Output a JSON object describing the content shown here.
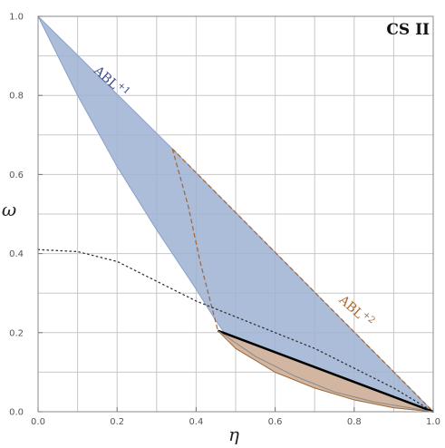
{
  "chart_data": {
    "type": "area",
    "tag": "CS II",
    "xlabel": "η",
    "ylabel": "ω",
    "xlim": [
      0,
      1
    ],
    "ylim": [
      0,
      1
    ],
    "xticks": [
      "0.0",
      "0.2",
      "0.4",
      "0.6",
      "0.8",
      "1.0"
    ],
    "yticks": [
      "0.0",
      "0.2",
      "0.4",
      "0.6",
      "0.8",
      "1.0"
    ],
    "grid": true,
    "colors": {
      "blue_fill": "#9db2d4",
      "blue_label": "#3b4a8f",
      "orange_fill": "#d8b596",
      "orange_line": "#a86a35",
      "dotted": "#333333",
      "black_line": "#000000",
      "grid": "#c8c8c8"
    },
    "regions": [
      {
        "name": "ABL+1",
        "color": "blue",
        "boundary": [
          [
            0.0,
            1.0
          ],
          [
            0.34,
            0.665
          ],
          [
            1.0,
            0.0
          ],
          [
            0.9,
            0.01
          ],
          [
            0.8,
            0.03
          ],
          [
            0.7,
            0.06
          ],
          [
            0.6,
            0.1
          ],
          [
            0.5,
            0.16
          ],
          [
            0.45,
            0.23
          ],
          [
            0.4,
            0.31
          ],
          [
            0.3,
            0.46
          ],
          [
            0.2,
            0.62
          ],
          [
            0.1,
            0.8
          ],
          [
            0.0,
            1.0
          ]
        ]
      },
      {
        "name": "ABL+2",
        "color": "orange",
        "boundary": [
          [
            0.455,
            0.205
          ],
          [
            1.0,
            0.0
          ],
          [
            0.9,
            0.01
          ],
          [
            0.8,
            0.03
          ],
          [
            0.7,
            0.06
          ],
          [
            0.6,
            0.1
          ],
          [
            0.5,
            0.16
          ],
          [
            0.455,
            0.205
          ]
        ]
      }
    ],
    "lines": [
      {
        "style": "dashed",
        "color": "orange",
        "points": [
          [
            0.34,
            0.665
          ],
          [
            0.38,
            0.52
          ],
          [
            0.41,
            0.38
          ],
          [
            0.455,
            0.205
          ]
        ]
      },
      {
        "style": "dashed",
        "color": "orange",
        "points": [
          [
            0.34,
            0.665
          ],
          [
            1.0,
            0.0
          ]
        ]
      },
      {
        "style": "dotted",
        "color": "dotted",
        "points": [
          [
            0.0,
            0.41
          ],
          [
            0.1,
            0.405
          ],
          [
            0.2,
            0.38
          ],
          [
            0.3,
            0.33
          ],
          [
            0.4,
            0.28
          ],
          [
            0.5,
            0.24
          ],
          [
            0.6,
            0.2
          ],
          [
            0.7,
            0.16
          ],
          [
            0.8,
            0.11
          ],
          [
            0.9,
            0.06
          ],
          [
            1.0,
            0.0
          ]
        ]
      },
      {
        "style": "solid",
        "color": "black_line",
        "width": 2.5,
        "points": [
          [
            0.455,
            0.205
          ],
          [
            1.0,
            0.0
          ]
        ]
      },
      {
        "style": "solid",
        "color": "grey",
        "width": 1,
        "points": [
          [
            0.455,
            0.205
          ],
          [
            0.55,
            0.14
          ],
          [
            0.65,
            0.09
          ],
          [
            0.75,
            0.05
          ],
          [
            0.85,
            0.025
          ],
          [
            1.0,
            0.0
          ]
        ]
      }
    ],
    "annotations": [
      {
        "text": "ABL",
        "sup": "+1",
        "color": "blue",
        "x": 0.14,
        "y": 0.86,
        "rotate": 42
      },
      {
        "text": "ABL",
        "sup": "+2",
        "color": "orange",
        "x": 0.76,
        "y": 0.28,
        "rotate": 42
      }
    ]
  }
}
